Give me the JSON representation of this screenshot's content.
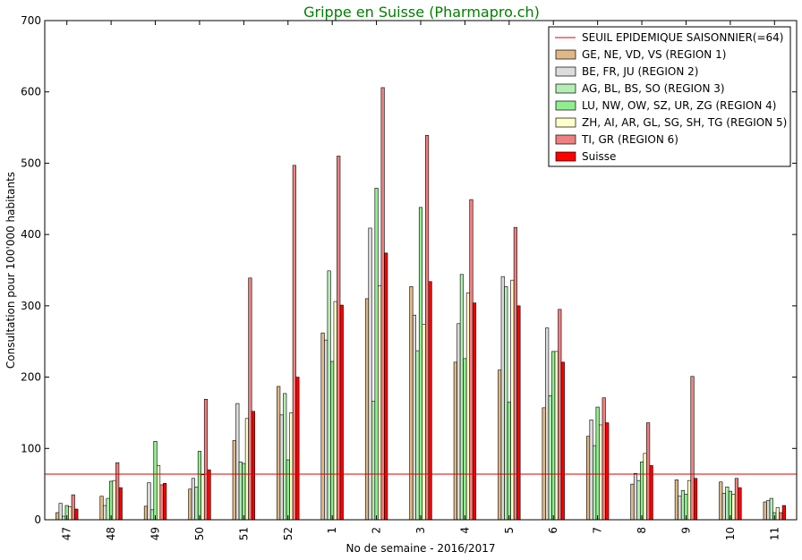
{
  "chart_data": {
    "type": "bar",
    "title": "Grippe en Suisse (Pharmapro.ch)",
    "title_color": "#008000",
    "xlabel": "No de semaine - 2016/2017",
    "ylabel": "Consultation pour 100'000 habitants",
    "ylim": [
      0,
      700
    ],
    "yticks": [
      0,
      100,
      200,
      300,
      400,
      500,
      600,
      700
    ],
    "categories": [
      "47",
      "48",
      "49",
      "50",
      "51",
      "52",
      "1",
      "2",
      "3",
      "4",
      "5",
      "6",
      "7",
      "8",
      "9",
      "10",
      "11"
    ],
    "threshold": {
      "name": "SEUIL EPIDEMIQUE SAISONNIER(=64)",
      "value": 64,
      "color": "#dd0000"
    },
    "legend_position": "top-right",
    "grid": false,
    "series": [
      {
        "name": "GE, NE, VD, VS (REGION 1)",
        "color": "#deb887",
        "values": [
          10,
          33,
          19,
          43,
          111,
          187,
          262,
          310,
          327,
          221,
          210,
          157,
          117,
          50,
          56,
          53,
          25
        ]
      },
      {
        "name": "BE, FR, JU (REGION 2)",
        "color": "#dcdcdc",
        "values": [
          23,
          20,
          52,
          58,
          163,
          147,
          252,
          409,
          287,
          275,
          341,
          269,
          140,
          65,
          33,
          37,
          27
        ]
      },
      {
        "name": "AG, BL, BS, SO (REGION 3)",
        "color": "#b4eeb4",
        "values": [
          5,
          30,
          14,
          46,
          81,
          177,
          349,
          166,
          237,
          344,
          327,
          174,
          104,
          55,
          41,
          46,
          30
        ]
      },
      {
        "name": "LU, NW, OW, SZ, UR, ZG (REGION 4)",
        "color": "#90ee90",
        "values": [
          20,
          54,
          110,
          96,
          79,
          84,
          222,
          465,
          438,
          226,
          165,
          236,
          158,
          81,
          36,
          40,
          10
        ]
      },
      {
        "name": "ZH, AI, AR, GL, SG, SH, TG (REGION 5)",
        "color": "#ffffcc",
        "values": [
          18,
          55,
          76,
          63,
          142,
          150,
          306,
          328,
          274,
          318,
          336,
          236,
          133,
          93,
          55,
          36,
          17
        ]
      },
      {
        "name": "TI, GR (REGION 6)",
        "color": "#f08080",
        "values": [
          35,
          80,
          49,
          169,
          339,
          497,
          510,
          606,
          539,
          449,
          410,
          295,
          171,
          136,
          201,
          58,
          10
        ]
      },
      {
        "name": "Suisse",
        "color": "#ff0000",
        "values": [
          15,
          45,
          51,
          70,
          152,
          200,
          301,
          374,
          334,
          304,
          300,
          221,
          136,
          76,
          58,
          45,
          20
        ]
      }
    ]
  }
}
